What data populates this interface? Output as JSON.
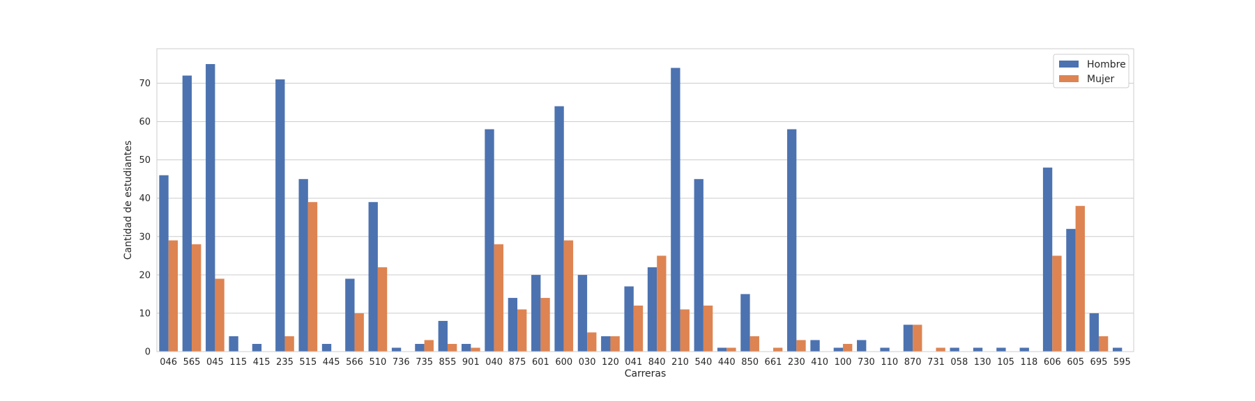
{
  "chart_data": {
    "type": "bar",
    "title": "",
    "xlabel": "Carreras",
    "ylabel": "Cantidad de estudiantes",
    "ylim": [
      0,
      79
    ],
    "yticks": [
      0,
      10,
      20,
      30,
      40,
      50,
      60,
      70
    ],
    "grid": "horizontal",
    "legend_position": "top-right",
    "categories": [
      "046",
      "565",
      "045",
      "115",
      "415",
      "235",
      "515",
      "445",
      "566",
      "510",
      "736",
      "735",
      "855",
      "901",
      "040",
      "875",
      "601",
      "600",
      "030",
      "120",
      "041",
      "840",
      "210",
      "540",
      "440",
      "850",
      "661",
      "230",
      "410",
      "100",
      "730",
      "110",
      "870",
      "731",
      "058",
      "130",
      "105",
      "118",
      "606",
      "605",
      "695",
      "595"
    ],
    "series": [
      {
        "name": "Hombre",
        "color": "#4c72b0",
        "values": [
          46,
          72,
          75,
          4,
          2,
          71,
          45,
          2,
          19,
          39,
          1,
          2,
          8,
          2,
          58,
          14,
          20,
          64,
          20,
          4,
          17,
          22,
          74,
          45,
          1,
          15,
          0,
          58,
          3,
          1,
          3,
          1,
          7,
          0,
          1,
          1,
          1,
          1,
          48,
          32,
          10,
          1
        ]
      },
      {
        "name": "Mujer",
        "color": "#dd8452",
        "values": [
          29,
          28,
          19,
          0,
          0,
          4,
          39,
          0,
          10,
          22,
          0,
          3,
          2,
          1,
          28,
          11,
          14,
          29,
          5,
          4,
          12,
          25,
          11,
          12,
          1,
          4,
          1,
          3,
          0,
          2,
          0,
          0,
          7,
          1,
          0,
          0,
          0,
          0,
          25,
          38,
          4,
          0
        ]
      }
    ]
  }
}
